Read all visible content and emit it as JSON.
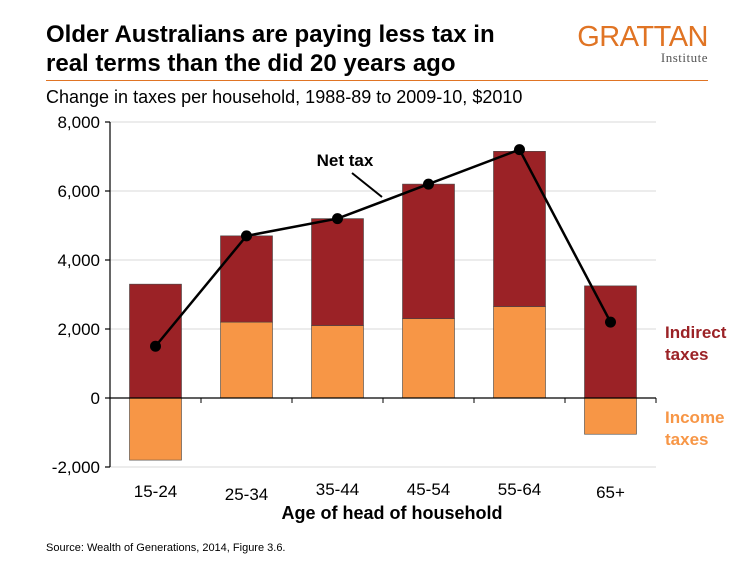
{
  "header": {
    "title_line1": "Older Australians are paying less tax in",
    "title_line2": "real terms than the did 20 years ago",
    "subtitle": "Change in taxes per household, 1988-89 to 2009-10, $2010"
  },
  "logo": {
    "main": "GRATTAN",
    "sub": "Institute"
  },
  "source": "Source: Wealth of Generations, 2014, Figure 3.6.",
  "colors": {
    "income": "#F79646",
    "indirect": "#9B2226",
    "line": "#000000",
    "logo": "#E07424"
  },
  "chart_data": {
    "type": "bar",
    "stacked": true,
    "categories": [
      "15-24",
      "25-34",
      "35-44",
      "45-54",
      "55-64",
      "65+"
    ],
    "series": [
      {
        "name": "Income taxes",
        "values": [
          -1800,
          2200,
          2100,
          2300,
          2650,
          -1050
        ]
      },
      {
        "name": "Indirect taxes",
        "values": [
          3300,
          2500,
          3100,
          3900,
          4500,
          3250
        ]
      }
    ],
    "line_series": {
      "name": "Net tax",
      "values": [
        1500,
        4700,
        5200,
        6200,
        7200,
        2200
      ]
    },
    "xlabel": "Age of head of household",
    "ylabel": "",
    "ylim": [
      -2000,
      8000
    ],
    "yticks": [
      -2000,
      0,
      2000,
      4000,
      6000,
      8000
    ],
    "ytick_labels": [
      "-2,000",
      "0",
      "2,000",
      "4,000",
      "6,000",
      "8,000"
    ],
    "grid": true,
    "legend_labels": {
      "indirect_line1": "Indirect",
      "indirect_line2": "taxes",
      "income_line1": "Income",
      "income_line2": "taxes"
    }
  }
}
